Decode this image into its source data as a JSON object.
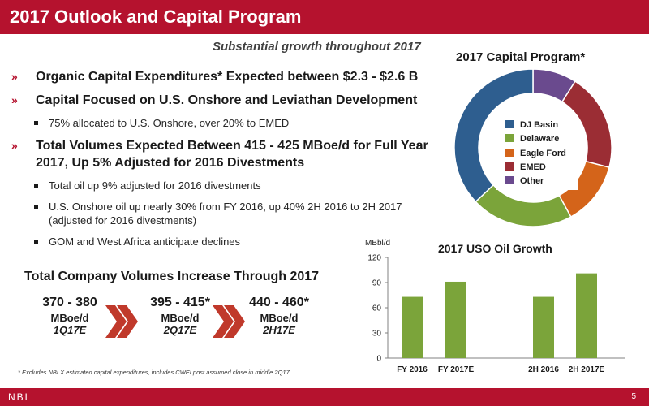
{
  "header": {
    "title": "2017 Outlook and Capital Program"
  },
  "subtitle": "Substantial growth throughout 2017",
  "bullets": [
    {
      "level": 1,
      "text": "Organic Capital Expenditures* Expected between $2.3 - $2.6 B"
    },
    {
      "level": 1,
      "text": "Capital Focused on U.S. Onshore and Leviathan Development"
    },
    {
      "level": 2,
      "text": "75% allocated to U.S. Onshore, over 20% to EMED"
    },
    {
      "level": 1,
      "text": "Total Volumes Expected Between 415 - 425 MBoe/d for Full Year 2017, Up 5% Adjusted for 2016 Divestments"
    },
    {
      "level": 2,
      "text": "Total oil up 9% adjusted for 2016 divestments"
    },
    {
      "level": 2,
      "text": "U.S. Onshore oil up nearly 30% from FY 2016, up 40% 2H 2016 to 2H 2017 (adjusted for 2016 divestments)"
    },
    {
      "level": 2,
      "text": "GOM and West Africa anticipate declines"
    }
  ],
  "volumes": {
    "title": "Total Company Volumes Increase Through 2017",
    "items": [
      {
        "range": "370 - 380",
        "unit": "MBoe/d",
        "period": "1Q17E"
      },
      {
        "range": "395 - 415*",
        "unit": "MBoe/d",
        "period": "2Q17E"
      },
      {
        "range": "440 - 460*",
        "unit": "MBoe/d",
        "period": "2H17E"
      }
    ]
  },
  "footnote": "* Excludes NBLX estimated capital expenditures, includes CWEI post assumed close in middle 2Q17",
  "footer": {
    "logo": "NBL",
    "page": "5"
  },
  "colors": {
    "brand": "#b5122e",
    "chevron": "#c0392b"
  },
  "chart_data": [
    {
      "type": "pie",
      "variant": "donut",
      "title": "2017 Capital Program*",
      "categories": [
        "DJ Basin",
        "Delaware",
        "Eagle Ford",
        "EMED",
        "Other"
      ],
      "values": [
        37,
        21,
        13,
        20,
        9
      ],
      "colors": [
        "#2e5e8f",
        "#7ba43a",
        "#d4641a",
        "#9b2d34",
        "#6a4a8e"
      ],
      "legend": "center"
    },
    {
      "type": "bar",
      "title": "2017 USO Oil Growth",
      "ylabel": "MBbl/d",
      "xlabel": "",
      "categories": [
        "FY 2016",
        "FY 2017E",
        "2H 2016",
        "2H 2017E"
      ],
      "values": [
        73,
        91,
        73,
        101
      ],
      "ylim": [
        0,
        120
      ],
      "yticks": [
        0,
        30,
        60,
        90,
        120
      ],
      "color": "#7ba43a",
      "grid": false
    }
  ]
}
